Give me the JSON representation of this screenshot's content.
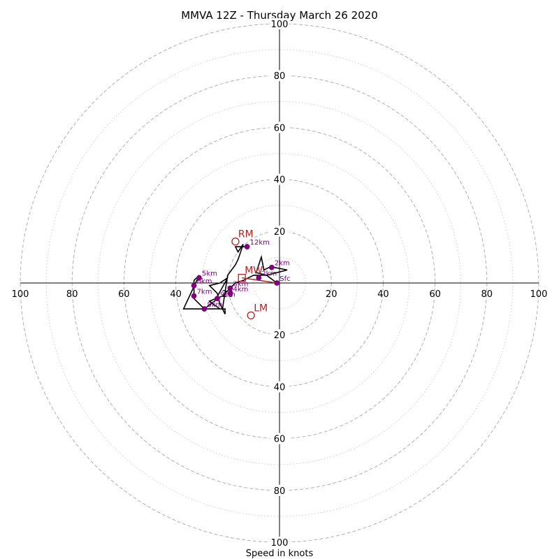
{
  "chart_data": {
    "type": "hodograph",
    "title": "MMVA 12Z - Thursday March 26 2020",
    "xlabel": "Speed in knots",
    "ylabel": "",
    "xlim": [
      -100,
      100
    ],
    "ylim": [
      -100,
      100
    ],
    "ring_labels": [
      "20",
      "40",
      "60",
      "80",
      "100"
    ],
    "axis_tick_labels": [
      "100",
      "80",
      "60",
      "40",
      "20",
      "20",
      "40",
      "60",
      "80",
      "100"
    ],
    "rings_major": [
      20,
      40,
      60,
      80,
      100
    ],
    "rings_minor": [
      10,
      30,
      50,
      70,
      90
    ],
    "colors": {
      "trace": "#000000",
      "height_marker": "#800080",
      "storm_motion": "#b22222",
      "grid_major": "#b0b0b0",
      "grid_minor": "#cccccc"
    },
    "trace": [
      [
        -1,
        0
      ],
      [
        -5,
        3
      ],
      [
        -9,
        4
      ],
      [
        -7,
        10
      ],
      [
        -6,
        5
      ],
      [
        -4,
        6
      ],
      [
        -2,
        6
      ],
      [
        3,
        5
      ],
      [
        -5,
        3
      ],
      [
        -10,
        3
      ],
      [
        -14,
        1
      ],
      [
        -17,
        0
      ],
      [
        -19,
        -2
      ],
      [
        -22,
        -5
      ],
      [
        -27,
        -7
      ],
      [
        -23,
        -10
      ],
      [
        -21,
        -10
      ],
      [
        -21,
        -12
      ],
      [
        -23,
        -8
      ],
      [
        -24,
        -4
      ],
      [
        -27,
        -1
      ],
      [
        -23,
        0
      ],
      [
        -20,
        2
      ],
      [
        -25,
        -7
      ],
      [
        -29,
        -10
      ],
      [
        -33,
        -6
      ],
      [
        -33,
        1
      ],
      [
        -31,
        3
      ],
      [
        -37,
        -10
      ],
      [
        -29,
        -10
      ],
      [
        -22,
        -10
      ],
      [
        -20,
        3
      ],
      [
        -17,
        7
      ],
      [
        -16,
        9
      ],
      [
        -15,
        12
      ],
      [
        -14,
        15
      ],
      [
        -16,
        12
      ],
      [
        -17,
        14
      ],
      [
        -13,
        14
      ]
    ],
    "height_markers": [
      {
        "label": "Sfc",
        "u": -1,
        "v": 0
      },
      {
        "label": "2km",
        "u": -8,
        "v": 2
      },
      {
        "label": "2km",
        "u": -3,
        "v": 6
      },
      {
        "label": "3km",
        "u": -19,
        "v": -2
      },
      {
        "label": "4km",
        "u": -19,
        "v": -4
      },
      {
        "label": "5km",
        "u": -31,
        "v": 2
      },
      {
        "label": "6km",
        "u": -33,
        "v": -1
      },
      {
        "label": "7km",
        "u": -33,
        "v": -5
      },
      {
        "label": "8km",
        "u": -29,
        "v": -10
      },
      {
        "label": "9km",
        "u": -24,
        "v": -6
      },
      {
        "label": "12km",
        "u": -12.5,
        "v": 14
      }
    ],
    "storm_motions": [
      {
        "label": "RM",
        "u": -17,
        "v": 16,
        "marker": "circle"
      },
      {
        "label": "LM",
        "u": -11,
        "v": -12.5,
        "marker": "circle"
      },
      {
        "label": "MW",
        "u": -14.5,
        "v": 2,
        "marker": "square"
      }
    ]
  }
}
